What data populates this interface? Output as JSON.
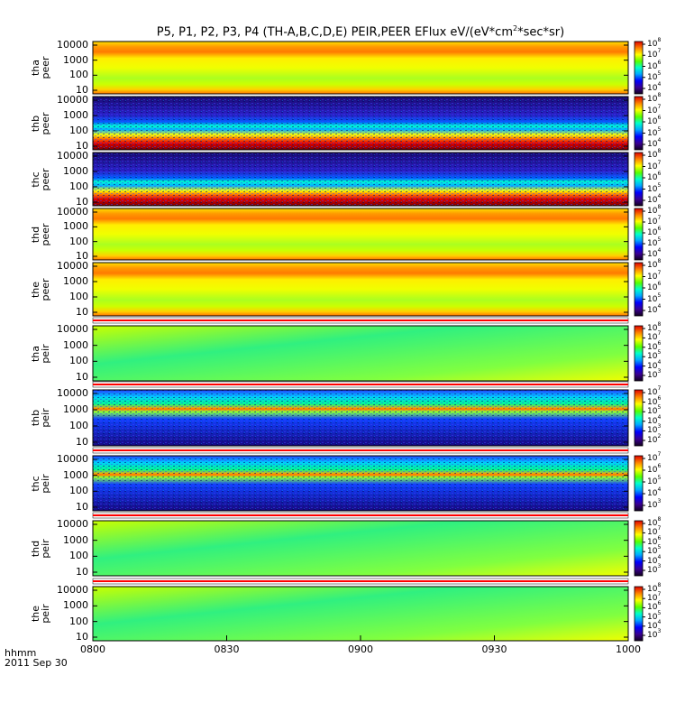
{
  "chart_data": {
    "type": "heatmap",
    "title_main": "P5, P1, P2, P3, P4 (TH-A,B,C,D,E) PEIR,PEER EFlux eV/(eV*cm",
    "title_sup": "2",
    "title_end": "*sec*sr)",
    "x_unit_label": "hhmm",
    "x_date_label": "2011 Sep 30",
    "x_ticks": [
      "0800",
      "0830",
      "0900",
      "0930",
      "1000"
    ],
    "y_ticks": [
      "10000",
      "1000",
      "100",
      "10"
    ],
    "y_scale": "log",
    "panels": [
      {
        "probe": "tha",
        "species": "peer",
        "cb_ticks": [
          8,
          7,
          6,
          5,
          4
        ],
        "profile": "electron_warm"
      },
      {
        "probe": "thb",
        "species": "peer",
        "cb_ticks": [
          8,
          7,
          6,
          5,
          4
        ],
        "profile": "electron_cold"
      },
      {
        "probe": "thc",
        "species": "peer",
        "cb_ticks": [
          8,
          7,
          6,
          5,
          4
        ],
        "profile": "electron_cold"
      },
      {
        "probe": "thd",
        "species": "peer",
        "cb_ticks": [
          8,
          7,
          6,
          5,
          4
        ],
        "profile": "electron_warm"
      },
      {
        "probe": "the",
        "species": "peer",
        "cb_ticks": [
          8,
          7,
          6,
          5,
          4
        ],
        "profile": "electron_warm"
      },
      {
        "probe": "tha",
        "species": "peir",
        "cb_ticks": [
          8,
          7,
          6,
          5,
          4,
          3
        ],
        "profile": "ion_green"
      },
      {
        "probe": "thb",
        "species": "peir",
        "cb_ticks": [
          7,
          6,
          5,
          4,
          3,
          2
        ],
        "profile": "ion_band"
      },
      {
        "probe": "thc",
        "species": "peir",
        "cb_ticks": [
          7,
          6,
          5,
          4,
          3
        ],
        "profile": "ion_band"
      },
      {
        "probe": "thd",
        "species": "peir",
        "cb_ticks": [
          8,
          7,
          6,
          5,
          4,
          3
        ],
        "profile": "ion_green"
      },
      {
        "probe": "the",
        "species": "peir",
        "cb_ticks": [
          8,
          7,
          6,
          5,
          4,
          3
        ],
        "profile": "ion_green"
      }
    ]
  }
}
